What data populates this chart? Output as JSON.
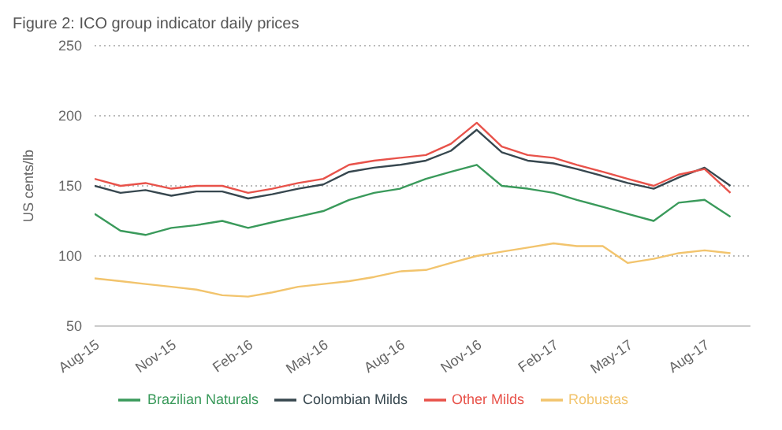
{
  "chart_data": {
    "type": "line",
    "title": "Figure 2: ICO group indicator daily prices",
    "ylabel": "US cents/lb",
    "x": [
      "2015-08-01",
      "2015-09-01",
      "2015-10-01",
      "2015-11-01",
      "2015-12-01",
      "2016-01-01",
      "2016-02-01",
      "2016-03-01",
      "2016-04-01",
      "2016-05-01",
      "2016-06-01",
      "2016-07-01",
      "2016-08-01",
      "2016-09-01",
      "2016-10-01",
      "2016-11-01",
      "2016-12-01",
      "2017-01-01",
      "2017-02-01",
      "2017-03-01",
      "2017-04-01",
      "2017-05-01",
      "2017-06-01",
      "2017-07-01",
      "2017-08-01",
      "2017-09-01"
    ],
    "series": [
      {
        "name": "Colombian Milds",
        "color": "#37474f",
        "values": [
          150,
          145,
          147,
          143,
          146,
          146,
          141,
          144,
          148,
          151,
          160,
          163,
          165,
          168,
          175,
          190,
          174,
          168,
          166,
          162,
          157,
          152,
          148,
          156,
          163,
          150
        ]
      },
      {
        "name": "Other Milds",
        "color": "#e8524a",
        "values": [
          155,
          150,
          152,
          148,
          150,
          150,
          145,
          148,
          152,
          155,
          165,
          168,
          170,
          172,
          180,
          195,
          178,
          172,
          170,
          165,
          160,
          155,
          150,
          158,
          162,
          145
        ]
      },
      {
        "name": "Brazilian Naturals",
        "color": "#3a9a5b",
        "values": [
          130,
          118,
          115,
          120,
          122,
          125,
          120,
          124,
          128,
          132,
          140,
          145,
          148,
          155,
          160,
          165,
          150,
          148,
          145,
          140,
          135,
          130,
          125,
          138,
          140,
          128
        ]
      },
      {
        "name": "Robustas",
        "color": "#f2c46d",
        "values": [
          84,
          82,
          80,
          78,
          76,
          72,
          71,
          74,
          78,
          80,
          82,
          85,
          89,
          90,
          95,
          100,
          103,
          106,
          109,
          107,
          107,
          95,
          98,
          102,
          104,
          102
        ]
      }
    ],
    "xlim": [
      "2015-08-01",
      "2017-09-25"
    ],
    "xticks": [
      {
        "value": "2015-08-01",
        "label": "Aug-15"
      },
      {
        "value": "2015-11-01",
        "label": "Nov-15"
      },
      {
        "value": "2016-02-01",
        "label": "Feb-16"
      },
      {
        "value": "2016-05-01",
        "label": "May-16"
      },
      {
        "value": "2016-08-01",
        "label": "Aug-16"
      },
      {
        "value": "2016-11-01",
        "label": "Nov-16"
      },
      {
        "value": "2017-02-01",
        "label": "Feb-17"
      },
      {
        "value": "2017-05-01",
        "label": "May-17"
      },
      {
        "value": "2017-08-01",
        "label": "Aug-17"
      }
    ],
    "ylim": [
      50,
      250
    ],
    "yticks": [
      50,
      100,
      150,
      200,
      250
    ],
    "grid": "y",
    "legend": "bottom",
    "marker": "none",
    "line_style": "solid"
  }
}
